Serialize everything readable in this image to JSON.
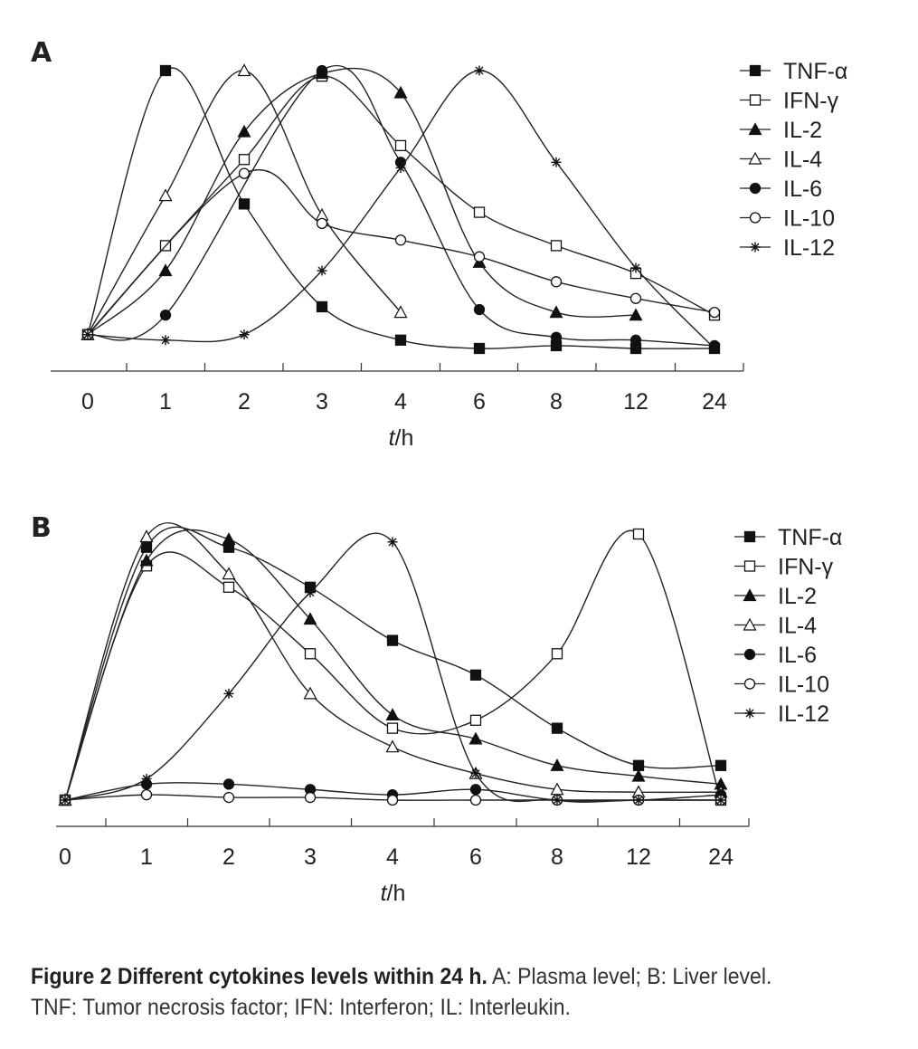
{
  "caption": {
    "label": "Figure 2  Different cytokines levels within 24 h.",
    "text": " A: Plasma level; B: Liver level. TNF: Tumor necrosis factor; IFN: Interferon; IL: Interleukin."
  },
  "chart_data": [
    {
      "panel": "A",
      "type": "line",
      "categories": [
        "0",
        "1",
        "2",
        "3",
        "4",
        "6",
        "8",
        "12",
        "24"
      ],
      "xlabel": "t/h",
      "ylabel": "",
      "grid": false,
      "legend": "top-right",
      "series": [
        {
          "name": "TNF-α",
          "marker": "square-filled",
          "values": [
            0.05,
            1.0,
            0.52,
            0.15,
            0.03,
            0.0,
            0.01,
            0.0,
            0.0
          ]
        },
        {
          "name": "IFN-γ",
          "marker": "square-open",
          "values": [
            0.05,
            0.37,
            0.68,
            0.98,
            0.73,
            0.49,
            0.37,
            0.27,
            0.12
          ]
        },
        {
          "name": "IL-2",
          "marker": "triangle-filled",
          "values": [
            0.05,
            0.28,
            0.78,
            0.99,
            0.92,
            0.31,
            0.13,
            0.12,
            null
          ]
        },
        {
          "name": "IL-4",
          "marker": "triangle-open",
          "values": [
            0.05,
            0.55,
            1.0,
            0.48,
            0.13,
            null,
            null,
            null,
            null
          ]
        },
        {
          "name": "IL-6",
          "marker": "circle-filled",
          "values": [
            0.05,
            0.12,
            null,
            1.0,
            0.67,
            0.14,
            0.04,
            0.03,
            0.01
          ]
        },
        {
          "name": "IL-10",
          "marker": "circle-open",
          "values": [
            0.05,
            null,
            0.63,
            0.45,
            0.39,
            0.33,
            0.24,
            0.18,
            0.13
          ]
        },
        {
          "name": "IL-12",
          "marker": "star",
          "values": [
            0.05,
            0.03,
            0.05,
            0.28,
            0.65,
            1.0,
            0.67,
            0.29,
            0.0
          ]
        }
      ]
    },
    {
      "panel": "B",
      "type": "line",
      "categories": [
        "0",
        "1",
        "2",
        "3",
        "4",
        "6",
        "8",
        "12",
        "24"
      ],
      "xlabel": "t/h",
      "ylabel": "",
      "grid": false,
      "legend": "top-right",
      "series": [
        {
          "name": "TNF-α",
          "marker": "square-filled",
          "values": [
            0.0,
            0.95,
            0.95,
            0.8,
            0.6,
            0.47,
            0.27,
            0.13,
            0.13
          ]
        },
        {
          "name": "IFN-γ",
          "marker": "square-open",
          "values": [
            0.0,
            0.88,
            0.8,
            0.55,
            0.27,
            0.3,
            0.55,
            1.0,
            0.0
          ]
        },
        {
          "name": "IL-2",
          "marker": "triangle-filled",
          "values": [
            0.0,
            0.9,
            0.98,
            0.68,
            0.32,
            0.23,
            0.13,
            0.09,
            0.06
          ]
        },
        {
          "name": "IL-4",
          "marker": "triangle-open",
          "values": [
            0.0,
            0.99,
            0.85,
            0.4,
            0.2,
            0.1,
            0.04,
            0.03,
            0.03
          ]
        },
        {
          "name": "IL-6",
          "marker": "circle-filled",
          "values": [
            0.0,
            0.06,
            0.06,
            0.04,
            0.02,
            0.04,
            0.0,
            0.0,
            0.02
          ]
        },
        {
          "name": "IL-10",
          "marker": "circle-open",
          "values": [
            0.0,
            0.02,
            0.01,
            0.01,
            0.0,
            0.0,
            0.0,
            0.0,
            0.0
          ]
        },
        {
          "name": "IL-12",
          "marker": "star",
          "values": [
            0.0,
            0.08,
            0.4,
            0.78,
            0.97,
            0.1,
            0.0,
            0.0,
            0.0
          ]
        }
      ]
    }
  ]
}
